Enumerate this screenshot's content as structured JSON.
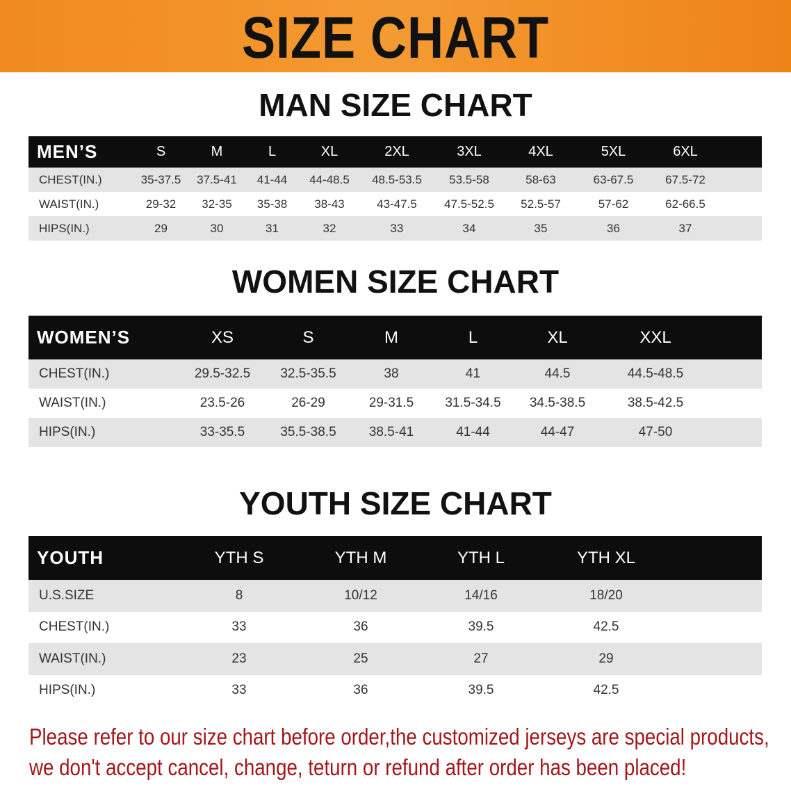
{
  "banner": {
    "title": "SIZE CHART",
    "color": "#f08a1e"
  },
  "men": {
    "title": "MAN SIZE CHART",
    "header": "MEN’S",
    "sizes": [
      "S",
      "M",
      "L",
      "XL",
      "2XL",
      "3XL",
      "4XL",
      "5XL",
      "6XL"
    ],
    "rows": [
      {
        "label": "CHEST(IN.)",
        "values": [
          "35-37.5",
          "37.5-41",
          "41-44",
          "44-48.5",
          "48.5-53.5",
          "53.5-58",
          "58-63",
          "63-67.5",
          "67.5-72"
        ]
      },
      {
        "label": "WAIST(IN.)",
        "values": [
          "29-32",
          "32-35",
          "35-38",
          "38-43",
          "43-47.5",
          "47.5-52.5",
          "52.5-57",
          "57-62",
          "62-66.5"
        ]
      },
      {
        "label": "HIPS(IN.)",
        "values": [
          "29",
          "30",
          "31",
          "32",
          "33",
          "34",
          "35",
          "36",
          "37"
        ]
      }
    ]
  },
  "women": {
    "title": "WOMEN SIZE CHART",
    "header": "WOMEN’S",
    "sizes": [
      "XS",
      "S",
      "M",
      "L",
      "XL",
      "XXL"
    ],
    "rows": [
      {
        "label": "CHEST(IN.)",
        "values": [
          "29.5-32.5",
          "32.5-35.5",
          "38",
          "41",
          "44.5",
          "44.5-48.5"
        ]
      },
      {
        "label": "WAIST(IN.)",
        "values": [
          "23.5-26",
          "26-29",
          "29-31.5",
          "31.5-34.5",
          "34.5-38.5",
          "38.5-42.5"
        ]
      },
      {
        "label": "HIPS(IN.)",
        "values": [
          "33-35.5",
          "35.5-38.5",
          "38.5-41",
          "41-44",
          "44-47",
          "47-50"
        ]
      }
    ]
  },
  "youth": {
    "title": "YOUTH SIZE CHART",
    "header": "YOUTH",
    "sizes": [
      "YTH S",
      "YTH M",
      "YTH L",
      "YTH XL"
    ],
    "rows": [
      {
        "label": "U.S.SIZE",
        "values": [
          "8",
          "10/12",
          "14/16",
          "18/20"
        ]
      },
      {
        "label": "CHEST(IN.)",
        "values": [
          "33",
          "36",
          "39.5",
          "42.5"
        ]
      },
      {
        "label": "WAIST(IN.)",
        "values": [
          "23",
          "25",
          "27",
          "29"
        ]
      },
      {
        "label": "HIPS(IN.)",
        "values": [
          "33",
          "36",
          "39.5",
          "42.5"
        ]
      }
    ]
  },
  "note": {
    "line1": "Please refer to our size chart before order,the customized jerseys are special products,",
    "line2": "we don't accept cancel, change, teturn or refund after order has been placed!",
    "color": "#a3161a"
  }
}
